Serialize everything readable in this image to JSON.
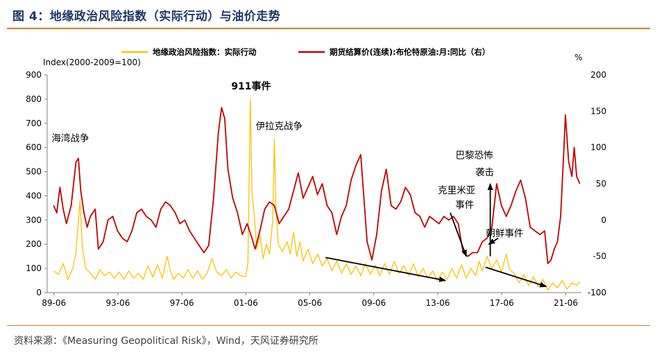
{
  "header": {
    "title": "图 4：地缘政治风险指数（实际行动）与油价走势"
  },
  "footer": {
    "source": "资料来源：《Measuring Geopolitical Risk》，Wind，天风证券研究所"
  },
  "chart_data": {
    "type": "line",
    "title": "",
    "y_left_label": "Index(2000-2009=100)",
    "y_right_label": "%",
    "y_left_range": [
      0,
      900
    ],
    "y_right_range": [
      -100,
      200
    ],
    "y_left_ticks": [
      "0",
      "100",
      "200",
      "300",
      "400",
      "500",
      "600",
      "700",
      "800",
      "900"
    ],
    "y_right_ticks": [
      "-100",
      "-50",
      "0",
      "50",
      "100",
      "150",
      "200"
    ],
    "x_range_years": [
      1989.0,
      2022.4
    ],
    "x_ticks": [
      {
        "label": "89-06",
        "year": 1989.42
      },
      {
        "label": "93-06",
        "year": 1993.42
      },
      {
        "label": "97-06",
        "year": 1997.42
      },
      {
        "label": "01-06",
        "year": 2001.42
      },
      {
        "label": "05-06",
        "year": 2005.42
      },
      {
        "label": "09-06",
        "year": 2009.42
      },
      {
        "label": "13-06",
        "year": 2013.42
      },
      {
        "label": "17-06",
        "year": 2017.42
      },
      {
        "label": "21-06",
        "year": 2021.42
      }
    ],
    "series": [
      {
        "name": "地缘政治风险指数：实际行动",
        "axis": "left",
        "color": "#ffc000",
        "points": [
          [
            1989.4,
            90
          ],
          [
            1989.7,
            75
          ],
          [
            1990.0,
            120
          ],
          [
            1990.3,
            55
          ],
          [
            1990.6,
            100
          ],
          [
            1990.8,
            165
          ],
          [
            1990.95,
            300
          ],
          [
            1991.05,
            380
          ],
          [
            1991.2,
            190
          ],
          [
            1991.4,
            100
          ],
          [
            1991.7,
            80
          ],
          [
            1992.0,
            55
          ],
          [
            1992.3,
            95
          ],
          [
            1992.6,
            70
          ],
          [
            1992.9,
            85
          ],
          [
            1993.2,
            60
          ],
          [
            1993.5,
            85
          ],
          [
            1993.8,
            55
          ],
          [
            1994.1,
            90
          ],
          [
            1994.4,
            60
          ],
          [
            1994.7,
            80
          ],
          [
            1995.0,
            55
          ],
          [
            1995.3,
            110
          ],
          [
            1995.6,
            65
          ],
          [
            1995.9,
            115
          ],
          [
            1996.2,
            60
          ],
          [
            1996.5,
            150
          ],
          [
            1996.7,
            90
          ],
          [
            1996.9,
            55
          ],
          [
            1997.2,
            80
          ],
          [
            1997.5,
            60
          ],
          [
            1997.8,
            95
          ],
          [
            1998.1,
            60
          ],
          [
            1998.4,
            90
          ],
          [
            1998.7,
            55
          ],
          [
            1999.0,
            80
          ],
          [
            1999.3,
            140
          ],
          [
            1999.6,
            85
          ],
          [
            1999.9,
            70
          ],
          [
            2000.2,
            95
          ],
          [
            2000.5,
            60
          ],
          [
            2000.8,
            85
          ],
          [
            2001.1,
            70
          ],
          [
            2001.4,
            65
          ],
          [
            2001.55,
            120
          ],
          [
            2001.7,
            800
          ],
          [
            2001.8,
            420
          ],
          [
            2001.95,
            320
          ],
          [
            2002.1,
            180
          ],
          [
            2002.3,
            240
          ],
          [
            2002.5,
            140
          ],
          [
            2002.7,
            200
          ],
          [
            2002.9,
            160
          ],
          [
            2003.1,
            300
          ],
          [
            2003.2,
            635
          ],
          [
            2003.3,
            350
          ],
          [
            2003.45,
            200
          ],
          [
            2003.7,
            170
          ],
          [
            2004.0,
            210
          ],
          [
            2004.2,
            160
          ],
          [
            2004.4,
            250
          ],
          [
            2004.6,
            150
          ],
          [
            2004.8,
            210
          ],
          [
            2005.0,
            130
          ],
          [
            2005.3,
            180
          ],
          [
            2005.6,
            120
          ],
          [
            2005.9,
            160
          ],
          [
            2006.2,
            110
          ],
          [
            2006.5,
            140
          ],
          [
            2006.8,
            90
          ],
          [
            2007.1,
            130
          ],
          [
            2007.4,
            80
          ],
          [
            2007.7,
            120
          ],
          [
            2008.0,
            75
          ],
          [
            2008.3,
            110
          ],
          [
            2008.6,
            70
          ],
          [
            2008.9,
            120
          ],
          [
            2009.2,
            75
          ],
          [
            2009.5,
            115
          ],
          [
            2009.8,
            70
          ],
          [
            2010.1,
            120
          ],
          [
            2010.4,
            75
          ],
          [
            2010.7,
            130
          ],
          [
            2011.0,
            80
          ],
          [
            2011.3,
            110
          ],
          [
            2011.6,
            70
          ],
          [
            2011.9,
            120
          ],
          [
            2012.2,
            65
          ],
          [
            2012.5,
            100
          ],
          [
            2012.8,
            60
          ],
          [
            2013.1,
            90
          ],
          [
            2013.4,
            50
          ],
          [
            2013.7,
            85
          ],
          [
            2014.0,
            55
          ],
          [
            2014.3,
            100
          ],
          [
            2014.6,
            60
          ],
          [
            2014.9,
            115
          ],
          [
            2015.2,
            60
          ],
          [
            2015.5,
            100
          ],
          [
            2015.8,
            70
          ],
          [
            2016.0,
            130
          ],
          [
            2016.2,
            90
          ],
          [
            2016.5,
            150
          ],
          [
            2016.8,
            100
          ],
          [
            2017.1,
            135
          ],
          [
            2017.4,
            85
          ],
          [
            2017.7,
            160
          ],
          [
            2017.9,
            95
          ],
          [
            2018.2,
            80
          ],
          [
            2018.5,
            40
          ],
          [
            2018.8,
            75
          ],
          [
            2019.1,
            30
          ],
          [
            2019.4,
            65
          ],
          [
            2019.7,
            25
          ],
          [
            2020.0,
            55
          ],
          [
            2020.3,
            10
          ],
          [
            2020.6,
            40
          ],
          [
            2020.9,
            20
          ],
          [
            2021.2,
            50
          ],
          [
            2021.5,
            15
          ],
          [
            2021.8,
            40
          ],
          [
            2022.1,
            30
          ],
          [
            2022.3,
            45
          ]
        ]
      },
      {
        "name": "期货结算价(连续):布伦特原油:月:同比（右）",
        "axis": "right",
        "color": "#c00000",
        "points": [
          [
            1989.4,
            20
          ],
          [
            1989.6,
            10
          ],
          [
            1989.8,
            45
          ],
          [
            1990.0,
            15
          ],
          [
            1990.2,
            -5
          ],
          [
            1990.5,
            20
          ],
          [
            1990.8,
            80
          ],
          [
            1990.95,
            85
          ],
          [
            1991.1,
            40
          ],
          [
            1991.3,
            10
          ],
          [
            1991.5,
            -10
          ],
          [
            1991.7,
            5
          ],
          [
            1992.0,
            15
          ],
          [
            1992.2,
            -40
          ],
          [
            1992.5,
            -30
          ],
          [
            1992.8,
            0
          ],
          [
            1993.1,
            5
          ],
          [
            1993.4,
            -15
          ],
          [
            1993.7,
            -25
          ],
          [
            1994.0,
            -30
          ],
          [
            1994.3,
            -15
          ],
          [
            1994.6,
            10
          ],
          [
            1994.9,
            15
          ],
          [
            1995.2,
            5
          ],
          [
            1995.5,
            0
          ],
          [
            1995.8,
            -10
          ],
          [
            1996.1,
            15
          ],
          [
            1996.4,
            25
          ],
          [
            1996.7,
            20
          ],
          [
            1997.0,
            10
          ],
          [
            1997.3,
            -5
          ],
          [
            1997.6,
            0
          ],
          [
            1997.9,
            -15
          ],
          [
            1998.2,
            -25
          ],
          [
            1998.5,
            -35
          ],
          [
            1998.8,
            -45
          ],
          [
            1999.1,
            -35
          ],
          [
            1999.4,
            30
          ],
          [
            1999.7,
            120
          ],
          [
            1999.9,
            155
          ],
          [
            2000.1,
            140
          ],
          [
            2000.3,
            70
          ],
          [
            2000.6,
            30
          ],
          [
            2000.9,
            10
          ],
          [
            2001.2,
            -20
          ],
          [
            2001.5,
            -5
          ],
          [
            2001.8,
            -25
          ],
          [
            2002.0,
            -40
          ],
          [
            2002.3,
            -15
          ],
          [
            2002.6,
            15
          ],
          [
            2002.9,
            25
          ],
          [
            2003.2,
            20
          ],
          [
            2003.5,
            -5
          ],
          [
            2003.8,
            5
          ],
          [
            2004.1,
            15
          ],
          [
            2004.4,
            40
          ],
          [
            2004.7,
            65
          ],
          [
            2005.0,
            30
          ],
          [
            2005.3,
            45
          ],
          [
            2005.6,
            60
          ],
          [
            2005.9,
            35
          ],
          [
            2006.2,
            50
          ],
          [
            2006.5,
            20
          ],
          [
            2006.8,
            10
          ],
          [
            2007.1,
            -20
          ],
          [
            2007.4,
            5
          ],
          [
            2007.7,
            20
          ],
          [
            2008.0,
            55
          ],
          [
            2008.3,
            75
          ],
          [
            2008.6,
            90
          ],
          [
            2008.8,
            30
          ],
          [
            2009.0,
            -30
          ],
          [
            2009.3,
            -55
          ],
          [
            2009.6,
            -20
          ],
          [
            2009.9,
            40
          ],
          [
            2010.2,
            70
          ],
          [
            2010.5,
            20
          ],
          [
            2010.8,
            15
          ],
          [
            2011.1,
            25
          ],
          [
            2011.4,
            45
          ],
          [
            2011.7,
            35
          ],
          [
            2012.0,
            10
          ],
          [
            2012.3,
            5
          ],
          [
            2012.6,
            -10
          ],
          [
            2012.9,
            5
          ],
          [
            2013.2,
            0
          ],
          [
            2013.5,
            -5
          ],
          [
            2013.8,
            5
          ],
          [
            2014.1,
            0
          ],
          [
            2014.4,
            5
          ],
          [
            2014.7,
            -5
          ],
          [
            2015.0,
            -45
          ],
          [
            2015.3,
            -50
          ],
          [
            2015.6,
            -45
          ],
          [
            2015.9,
            -45
          ],
          [
            2016.2,
            -30
          ],
          [
            2016.5,
            -25
          ],
          [
            2016.8,
            -10
          ],
          [
            2017.1,
            50
          ],
          [
            2017.4,
            20
          ],
          [
            2017.7,
            5
          ],
          [
            2018.0,
            20
          ],
          [
            2018.3,
            40
          ],
          [
            2018.6,
            55
          ],
          [
            2018.9,
            30
          ],
          [
            2019.2,
            -10
          ],
          [
            2019.5,
            -15
          ],
          [
            2019.8,
            -20
          ],
          [
            2020.1,
            -15
          ],
          [
            2020.3,
            -60
          ],
          [
            2020.5,
            -55
          ],
          [
            2020.7,
            -40
          ],
          [
            2020.9,
            -30
          ],
          [
            2021.1,
            5
          ],
          [
            2021.3,
            95
          ],
          [
            2021.4,
            145
          ],
          [
            2021.6,
            80
          ],
          [
            2021.8,
            60
          ],
          [
            2021.95,
            100
          ],
          [
            2022.1,
            60
          ],
          [
            2022.3,
            50
          ]
        ]
      }
    ],
    "annotations": [
      {
        "text": "海湾战争",
        "year": 1990.45,
        "value": 625,
        "bold": false
      },
      {
        "text": "911事件",
        "year": 2001.75,
        "value": 840,
        "bold": true
      },
      {
        "text": "伊拉克战争",
        "year": 2003.5,
        "value": 675,
        "bold": false
      },
      {
        "text": "巴黎恐怖",
        "year": 2015.7,
        "value": 555,
        "bold": false
      },
      {
        "text": "袭击",
        "year": 2016.35,
        "value": 485,
        "bold": false
      },
      {
        "text": "克里米亚",
        "year": 2014.6,
        "value": 410,
        "bold": false
      },
      {
        "text": "事件",
        "year": 2015.1,
        "value": 350,
        "bold": false
      },
      {
        "text": "朝鲜事件",
        "year": 2017.6,
        "value": 232,
        "bold": false
      }
    ],
    "arrows": [
      {
        "from": [
          2016.7,
          150
        ],
        "to": [
          2016.7,
          450
        ]
      },
      {
        "from": [
          2014.2,
          330
        ],
        "to": [
          2015.2,
          150
        ]
      },
      {
        "from": [
          2017.2,
          225
        ],
        "to": [
          2016.6,
          200
        ]
      },
      {
        "from": [
          2006.4,
          145
        ],
        "to": [
          2013.9,
          50
        ]
      },
      {
        "from": [
          2016.4,
          105
        ],
        "to": [
          2020.2,
          25
        ]
      }
    ]
  }
}
